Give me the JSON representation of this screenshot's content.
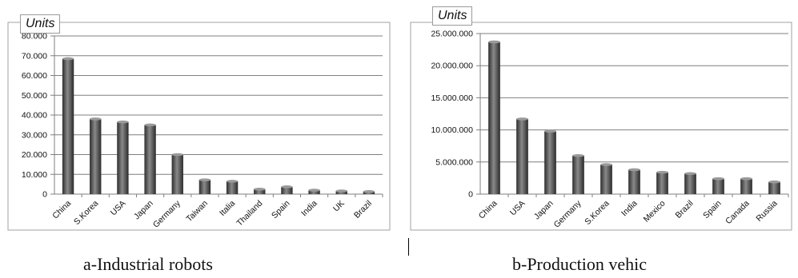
{
  "chart_data": [
    {
      "type": "bar",
      "ylabel": "Units",
      "caption": "a-Industrial robots",
      "categories": [
        "China",
        "S.Korea",
        "USA",
        "Japan",
        "Germany",
        "Taiwan",
        "Italia",
        "Thailand",
        "Spain",
        "India",
        "UK",
        "Brazil"
      ],
      "values": [
        68500,
        38000,
        36500,
        35000,
        20000,
        7200,
        6500,
        2500,
        3700,
        2000,
        1600,
        1300
      ],
      "ylim": [
        0,
        80000
      ],
      "yticks": [
        "0",
        "10.000",
        "20.000",
        "30.000",
        "40.000",
        "50.000",
        "60.000",
        "70.000",
        "80.000"
      ],
      "grid": true
    },
    {
      "type": "bar",
      "ylabel": "Units",
      "caption": "b-Production vehic",
      "categories": [
        "China",
        "USA",
        "Japan",
        "Germany",
        "S.Korea",
        "India",
        "Mexico",
        "Brazil",
        "Spain",
        "Canada",
        "Russia"
      ],
      "values": [
        23700000,
        11700000,
        9800000,
        6000000,
        4600000,
        3800000,
        3400000,
        3200000,
        2400000,
        2400000,
        1900000
      ],
      "ylim": [
        0,
        25000000
      ],
      "yticks": [
        "0",
        "5.000.000",
        "10.000.000",
        "15.000.000",
        "20.000.000",
        "25.000.000"
      ],
      "grid": true
    }
  ],
  "colors": {
    "bar": "#4a4a4a",
    "bar_highlight": "#8a8a8a",
    "grid": "#7f7f7f",
    "frame": "#a0a0a0"
  }
}
